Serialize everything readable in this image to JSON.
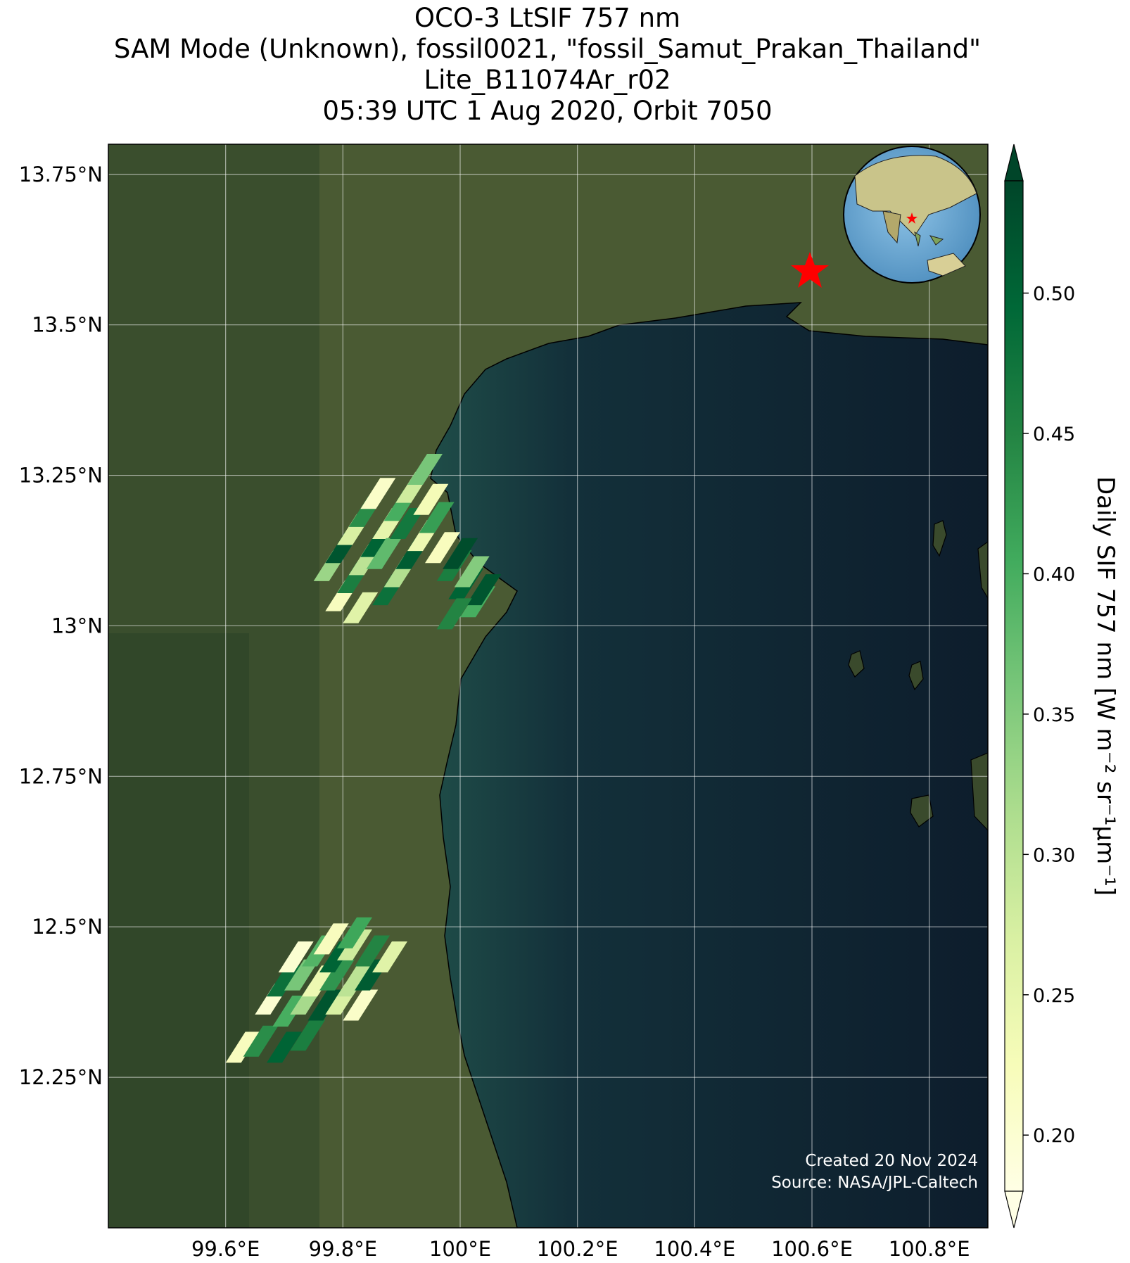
{
  "title": {
    "line1": "OCO-3 LtSIF 757 nm",
    "line2": "SAM Mode (Unknown), fossil0021, \"fossil_Samut_Prakan_Thailand\"",
    "line3": "Lite_B11074Ar_r02",
    "line4": "05:39 UTC 1 Aug 2020, Orbit 7050"
  },
  "map": {
    "lon_range": [
      99.4,
      100.9
    ],
    "lat_range": [
      12.0,
      13.8
    ],
    "lon_ticks": [
      {
        "value": 99.6,
        "label": "99.6°E"
      },
      {
        "value": 99.8,
        "label": "99.8°E"
      },
      {
        "value": 100.0,
        "label": "100°E"
      },
      {
        "value": 100.2,
        "label": "100.2°E"
      },
      {
        "value": 100.4,
        "label": "100.4°E"
      },
      {
        "value": 100.6,
        "label": "100.6°E"
      },
      {
        "value": 100.8,
        "label": "100.8°E"
      }
    ],
    "lat_ticks": [
      {
        "value": 13.75,
        "label": "13.75°N"
      },
      {
        "value": 13.5,
        "label": "13.5°N"
      },
      {
        "value": 13.25,
        "label": "13.25°N"
      },
      {
        "value": 13.0,
        "label": "13°N"
      },
      {
        "value": 12.75,
        "label": "12.75°N"
      },
      {
        "value": 12.5,
        "label": "12.5°N"
      },
      {
        "value": 12.25,
        "label": "12.25°N"
      }
    ],
    "target": {
      "lon": 100.595,
      "lat": 13.6,
      "marker": "red-star",
      "color": "#ff0000"
    },
    "colors": {
      "land": "#4a5a33",
      "sea": "#0f1f2d",
      "coast_shelf": "#1f4d48",
      "coastline": "#000000"
    }
  },
  "colorbar": {
    "label": "Daily SIF 757 nm [W m⁻² sr⁻¹μm⁻¹]",
    "min": 0.18,
    "max": 0.54,
    "colormap": "YlGn",
    "extend": "both",
    "ticks": [
      {
        "value": 0.2,
        "label": "0.20"
      },
      {
        "value": 0.25,
        "label": "0.25"
      },
      {
        "value": 0.3,
        "label": "0.30"
      },
      {
        "value": 0.35,
        "label": "0.35"
      },
      {
        "value": 0.4,
        "label": "0.40"
      },
      {
        "value": 0.45,
        "label": "0.45"
      },
      {
        "value": 0.5,
        "label": "0.50"
      }
    ]
  },
  "footnote": {
    "created": "Created 20 Nov 2024",
    "source": "Source: NASA/JPL-Caltech"
  },
  "inset": {
    "description_icon": "globe-icon",
    "target_marker": "red-star"
  },
  "soundings": {
    "north_cluster": [
      {
        "lon": 99.8,
        "lat": 13.05,
        "sif": 0.22
      },
      {
        "lon": 99.82,
        "lat": 13.08,
        "sif": 0.46
      },
      {
        "lon": 99.84,
        "lat": 13.11,
        "sif": 0.3
      },
      {
        "lon": 99.86,
        "lat": 13.14,
        "sif": 0.5
      },
      {
        "lon": 99.88,
        "lat": 13.17,
        "sif": 0.25
      },
      {
        "lon": 99.9,
        "lat": 13.2,
        "sif": 0.4
      },
      {
        "lon": 99.92,
        "lat": 13.23,
        "sif": 0.28
      },
      {
        "lon": 99.94,
        "lat": 13.26,
        "sif": 0.36
      },
      {
        "lon": 99.78,
        "lat": 13.1,
        "sif": 0.33
      },
      {
        "lon": 99.8,
        "lat": 13.13,
        "sif": 0.52
      },
      {
        "lon": 99.82,
        "lat": 13.16,
        "sif": 0.27
      },
      {
        "lon": 99.84,
        "lat": 13.19,
        "sif": 0.44
      },
      {
        "lon": 99.86,
        "lat": 13.22,
        "sif": 0.21
      },
      {
        "lon": 99.88,
        "lat": 13.06,
        "sif": 0.48
      },
      {
        "lon": 99.9,
        "lat": 13.09,
        "sif": 0.31
      },
      {
        "lon": 99.92,
        "lat": 13.12,
        "sif": 0.51
      },
      {
        "lon": 99.94,
        "lat": 13.15,
        "sif": 0.24
      },
      {
        "lon": 99.96,
        "lat": 13.18,
        "sif": 0.42
      },
      {
        "lon": 99.83,
        "lat": 13.03,
        "sif": 0.26
      },
      {
        "lon": 99.87,
        "lat": 13.12,
        "sif": 0.38
      },
      {
        "lon": 99.91,
        "lat": 13.17,
        "sif": 0.47
      },
      {
        "lon": 99.95,
        "lat": 13.21,
        "sif": 0.23
      }
    ],
    "east_cluster": [
      {
        "lon": 99.97,
        "lat": 13.13,
        "sif": 0.22
      },
      {
        "lon": 99.99,
        "lat": 13.1,
        "sif": 0.46
      },
      {
        "lon": 100.01,
        "lat": 13.07,
        "sif": 0.5
      },
      {
        "lon": 100.03,
        "lat": 13.04,
        "sif": 0.4
      },
      {
        "lon": 100.0,
        "lat": 13.12,
        "sif": 0.53
      },
      {
        "lon": 100.02,
        "lat": 13.09,
        "sif": 0.35
      },
      {
        "lon": 100.04,
        "lat": 13.06,
        "sif": 0.52
      },
      {
        "lon": 99.99,
        "lat": 13.02,
        "sif": 0.45
      }
    ],
    "south_cluster": [
      {
        "lon": 99.63,
        "lat": 12.3,
        "sif": 0.22
      },
      {
        "lon": 99.66,
        "lat": 12.31,
        "sif": 0.44
      },
      {
        "lon": 99.7,
        "lat": 12.3,
        "sif": 0.5
      },
      {
        "lon": 99.74,
        "lat": 12.32,
        "sif": 0.46
      },
      {
        "lon": 99.68,
        "lat": 12.38,
        "sif": 0.2
      },
      {
        "lon": 99.71,
        "lat": 12.36,
        "sif": 0.4
      },
      {
        "lon": 99.74,
        "lat": 12.38,
        "sif": 0.32
      },
      {
        "lon": 99.77,
        "lat": 12.37,
        "sif": 0.52
      },
      {
        "lon": 99.8,
        "lat": 12.38,
        "sif": 0.27
      },
      {
        "lon": 99.83,
        "lat": 12.37,
        "sif": 0.21
      },
      {
        "lon": 99.7,
        "lat": 12.41,
        "sif": 0.48
      },
      {
        "lon": 99.73,
        "lat": 12.42,
        "sif": 0.36
      },
      {
        "lon": 99.76,
        "lat": 12.41,
        "sif": 0.24
      },
      {
        "lon": 99.79,
        "lat": 12.42,
        "sif": 0.43
      },
      {
        "lon": 99.82,
        "lat": 12.41,
        "sif": 0.3
      },
      {
        "lon": 99.85,
        "lat": 12.42,
        "sif": 0.51
      },
      {
        "lon": 99.72,
        "lat": 12.45,
        "sif": 0.2
      },
      {
        "lon": 99.76,
        "lat": 12.46,
        "sif": 0.39
      },
      {
        "lon": 99.79,
        "lat": 12.45,
        "sif": 0.5
      },
      {
        "lon": 99.82,
        "lat": 12.47,
        "sif": 0.28
      },
      {
        "lon": 99.85,
        "lat": 12.46,
        "sif": 0.45
      },
      {
        "lon": 99.88,
        "lat": 12.45,
        "sif": 0.26
      },
      {
        "lon": 99.78,
        "lat": 12.48,
        "sif": 0.22
      },
      {
        "lon": 99.82,
        "lat": 12.49,
        "sif": 0.41
      }
    ]
  }
}
